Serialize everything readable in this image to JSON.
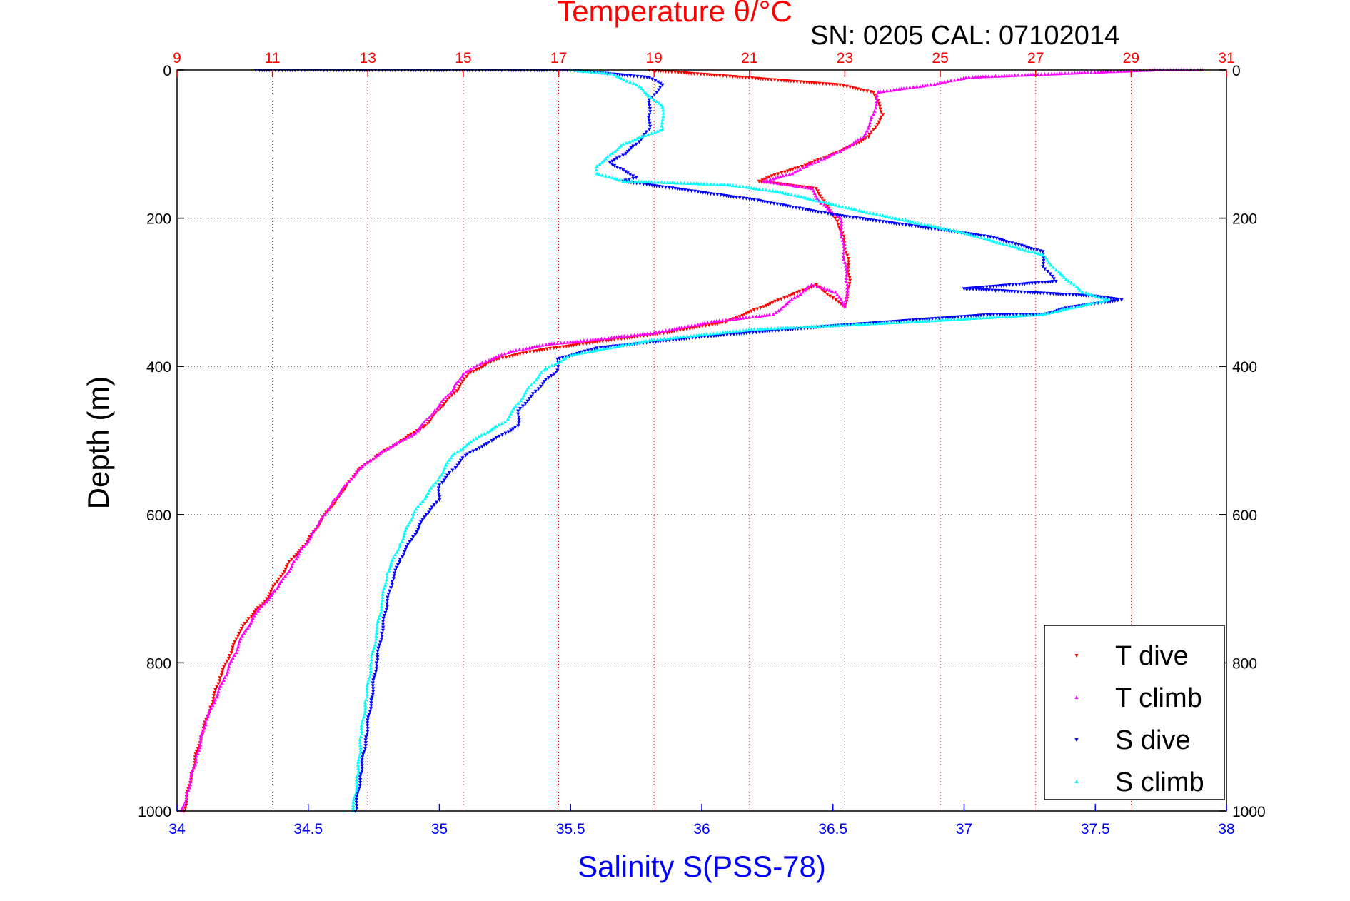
{
  "chart_data": {
    "type": "scatter",
    "title": "Temperature θ/°C",
    "annotation": "SN: 0205  CAL: 07102014",
    "xlabel": "Salinity S(PSS-78)",
    "ylabel": "Depth (m)",
    "ylim": [
      0,
      1000
    ],
    "y_inverted": true,
    "y_ticks": [
      "0",
      "200",
      "400",
      "600",
      "800",
      "1000"
    ],
    "x_bottom": {
      "lim": [
        34,
        38
      ],
      "ticks": [
        "34",
        "34.5",
        "35",
        "35.5",
        "36",
        "36.5",
        "37",
        "37.5",
        "38"
      ],
      "color": "#0000ff"
    },
    "x_top": {
      "lim": [
        9,
        31
      ],
      "ticks": [
        "9",
        "11",
        "13",
        "15",
        "17",
        "19",
        "21",
        "23",
        "25",
        "27",
        "29",
        "31"
      ],
      "color": "#ff0000"
    },
    "grid": true,
    "legend_position": "bottom-right",
    "series": [
      {
        "name": "T dive",
        "axis": "top",
        "color": "#ff0000",
        "marker": "triangle-down",
        "points": [
          [
            18.9,
            0
          ],
          [
            22.9,
            20
          ],
          [
            23.6,
            30
          ],
          [
            23.8,
            60
          ],
          [
            23.5,
            90
          ],
          [
            22.9,
            110
          ],
          [
            22.1,
            130
          ],
          [
            21.6,
            140
          ],
          [
            21.2,
            150
          ],
          [
            22.4,
            160
          ],
          [
            22.6,
            180
          ],
          [
            22.8,
            200
          ],
          [
            22.95,
            220
          ],
          [
            23.05,
            250
          ],
          [
            23.1,
            280
          ],
          [
            23.05,
            300
          ],
          [
            23.0,
            320
          ],
          [
            22.4,
            290
          ],
          [
            22.0,
            300
          ],
          [
            20.5,
            340
          ],
          [
            19.2,
            355
          ],
          [
            18.0,
            365
          ],
          [
            16.9,
            375
          ],
          [
            16.4,
            380
          ],
          [
            15.7,
            390
          ],
          [
            15.1,
            410
          ],
          [
            14.9,
            430
          ],
          [
            14.6,
            450
          ],
          [
            14.2,
            480
          ],
          [
            13.7,
            500
          ],
          [
            13.2,
            520
          ],
          [
            12.8,
            540
          ],
          [
            12.6,
            555
          ],
          [
            12.4,
            575
          ],
          [
            12.1,
            600
          ],
          [
            11.7,
            640
          ],
          [
            11.4,
            660
          ],
          [
            11.1,
            690
          ],
          [
            10.8,
            720
          ],
          [
            10.5,
            740
          ],
          [
            10.3,
            760
          ],
          [
            10.1,
            790
          ],
          [
            9.9,
            820
          ],
          [
            9.7,
            860
          ],
          [
            9.5,
            900
          ],
          [
            9.3,
            950
          ],
          [
            9.15,
            1000
          ]
        ]
      },
      {
        "name": "T climb",
        "axis": "top",
        "color": "#ff00ff",
        "marker": "triangle-up",
        "points": [
          [
            30.5,
            0
          ],
          [
            29.5,
            0
          ],
          [
            27.5,
            5
          ],
          [
            25.6,
            10
          ],
          [
            24.8,
            20
          ],
          [
            23.7,
            30
          ],
          [
            23.6,
            60
          ],
          [
            23.4,
            90
          ],
          [
            22.9,
            110
          ],
          [
            22.2,
            130
          ],
          [
            21.9,
            140
          ],
          [
            21.3,
            150
          ],
          [
            22.3,
            160
          ],
          [
            22.5,
            180
          ],
          [
            22.9,
            200
          ],
          [
            22.95,
            230
          ],
          [
            23.0,
            260
          ],
          [
            23.05,
            290
          ],
          [
            23.0,
            320
          ],
          [
            22.8,
            300
          ],
          [
            22.3,
            290
          ],
          [
            21.5,
            330
          ],
          [
            20.2,
            340
          ],
          [
            19.0,
            355
          ],
          [
            17.6,
            365
          ],
          [
            16.8,
            370
          ],
          [
            16.0,
            380
          ],
          [
            15.4,
            395
          ],
          [
            15.0,
            410
          ],
          [
            14.8,
            430
          ],
          [
            14.4,
            460
          ],
          [
            14.0,
            490
          ],
          [
            13.3,
            515
          ],
          [
            12.8,
            540
          ],
          [
            12.3,
            580
          ],
          [
            11.9,
            620
          ],
          [
            11.5,
            660
          ],
          [
            11.1,
            700
          ],
          [
            10.7,
            730
          ],
          [
            10.4,
            760
          ],
          [
            10.2,
            790
          ],
          [
            10.0,
            820
          ],
          [
            9.8,
            850
          ],
          [
            9.6,
            880
          ],
          [
            9.4,
            930
          ],
          [
            9.2,
            980
          ],
          [
            9.1,
            1000
          ]
        ]
      },
      {
        "name": "S dive",
        "axis": "bottom",
        "color": "#0000ff",
        "marker": "triangle-down",
        "points": [
          [
            34.3,
            0
          ],
          [
            35.5,
            0
          ],
          [
            35.65,
            5
          ],
          [
            35.8,
            10
          ],
          [
            35.85,
            20
          ],
          [
            35.8,
            40
          ],
          [
            35.8,
            60
          ],
          [
            35.8,
            80
          ],
          [
            35.75,
            100
          ],
          [
            35.7,
            115
          ],
          [
            35.65,
            125
          ],
          [
            35.7,
            135
          ],
          [
            35.75,
            145
          ],
          [
            35.7,
            150
          ],
          [
            36.2,
            175
          ],
          [
            36.5,
            195
          ],
          [
            36.8,
            210
          ],
          [
            37.1,
            225
          ],
          [
            37.3,
            245
          ],
          [
            37.3,
            265
          ],
          [
            37.35,
            285
          ],
          [
            37.0,
            295
          ],
          [
            37.5,
            305
          ],
          [
            37.6,
            310
          ],
          [
            37.4,
            320
          ],
          [
            37.3,
            330
          ],
          [
            37.1,
            330
          ],
          [
            36.5,
            345
          ],
          [
            36.0,
            360
          ],
          [
            35.6,
            375
          ],
          [
            35.45,
            390
          ],
          [
            35.45,
            405
          ],
          [
            35.4,
            420
          ],
          [
            35.35,
            440
          ],
          [
            35.3,
            460
          ],
          [
            35.3,
            480
          ],
          [
            35.2,
            500
          ],
          [
            35.1,
            520
          ],
          [
            35.05,
            540
          ],
          [
            35.0,
            560
          ],
          [
            35.0,
            580
          ],
          [
            34.95,
            600
          ],
          [
            34.9,
            630
          ],
          [
            34.85,
            660
          ],
          [
            34.82,
            690
          ],
          [
            34.8,
            720
          ],
          [
            34.78,
            760
          ],
          [
            34.76,
            800
          ],
          [
            34.74,
            850
          ],
          [
            34.72,
            900
          ],
          [
            34.7,
            950
          ],
          [
            34.68,
            1000
          ]
        ]
      },
      {
        "name": "S climb",
        "axis": "bottom",
        "color": "#00ffff",
        "marker": "triangle-up",
        "points": [
          [
            35.5,
            0
          ],
          [
            35.65,
            5
          ],
          [
            35.75,
            20
          ],
          [
            35.85,
            50
          ],
          [
            35.85,
            80
          ],
          [
            35.7,
            100
          ],
          [
            35.65,
            115
          ],
          [
            35.6,
            130
          ],
          [
            35.6,
            140
          ],
          [
            35.7,
            150
          ],
          [
            36.1,
            155
          ],
          [
            36.3,
            165
          ],
          [
            36.6,
            190
          ],
          [
            37.0,
            220
          ],
          [
            37.3,
            250
          ],
          [
            37.35,
            270
          ],
          [
            37.45,
            300
          ],
          [
            37.55,
            310
          ],
          [
            37.3,
            330
          ],
          [
            36.8,
            340
          ],
          [
            36.2,
            350
          ],
          [
            35.8,
            365
          ],
          [
            35.5,
            385
          ],
          [
            35.4,
            405
          ],
          [
            35.35,
            425
          ],
          [
            35.3,
            450
          ],
          [
            35.25,
            475
          ],
          [
            35.15,
            495
          ],
          [
            35.05,
            520
          ],
          [
            35.0,
            550
          ],
          [
            34.95,
            575
          ],
          [
            34.9,
            600
          ],
          [
            34.85,
            640
          ],
          [
            34.8,
            680
          ],
          [
            34.78,
            720
          ],
          [
            34.76,
            760
          ],
          [
            34.74,
            800
          ],
          [
            34.72,
            850
          ],
          [
            34.7,
            900
          ],
          [
            34.69,
            950
          ],
          [
            34.67,
            1000
          ]
        ]
      }
    ]
  }
}
